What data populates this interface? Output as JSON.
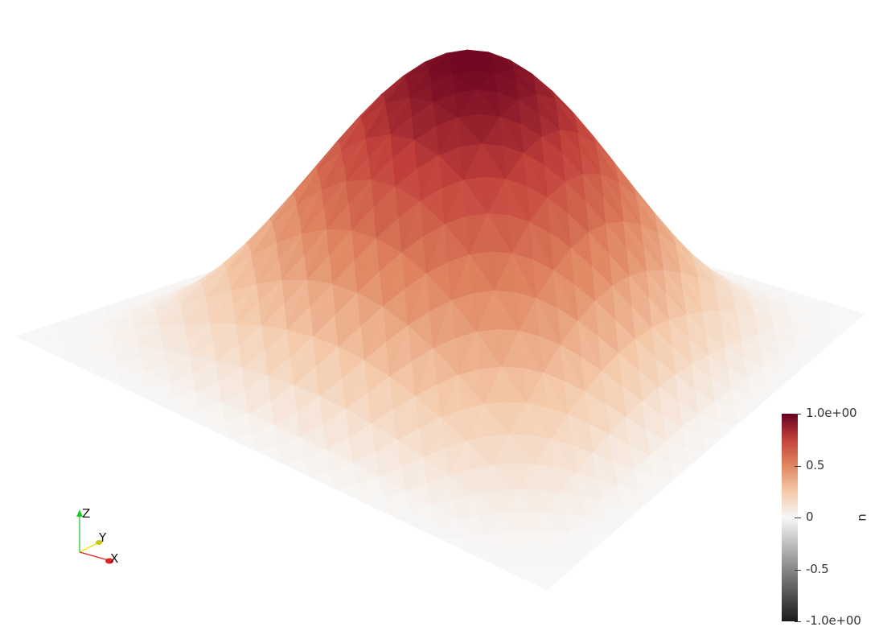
{
  "view": {
    "background": "#ffffff",
    "mesh_edge_color": "#ffffff",
    "mesh_opacity": 0.85
  },
  "colormap": {
    "name": "array-field",
    "field": "u",
    "range": [
      -1.0,
      1.0
    ],
    "low_color": "#1a1a1a",
    "mid_color": "#f7f7f7",
    "high_color": "#67001f",
    "stops": [
      [
        -1.0,
        "#1a1a1a"
      ],
      [
        -0.5,
        "#878787"
      ],
      [
        0.0,
        "#f7f7f7"
      ],
      [
        0.25,
        "#f4c9a8"
      ],
      [
        0.5,
        "#e08661"
      ],
      [
        0.75,
        "#c2413b"
      ],
      [
        1.0,
        "#67001f"
      ]
    ]
  },
  "scalar_bar": {
    "title": "u",
    "ticks": [
      {
        "value": 1.0,
        "label": "1.0e+00"
      },
      {
        "value": 0.5,
        "label": "0.5"
      },
      {
        "value": 0.0,
        "label": "0"
      },
      {
        "value": -0.5,
        "label": "-0.5"
      },
      {
        "value": -1.0,
        "label": "-1.0e+00"
      }
    ]
  },
  "axes_triad": {
    "x_label": "X",
    "y_label": "Y",
    "z_label": "Z",
    "x_color": "#e82020",
    "y_color": "#e8e800",
    "z_color": "#22c822"
  },
  "surface": {
    "type": "gaussian-bump",
    "peak_value": 1.0,
    "boundary_value": 0.0
  }
}
